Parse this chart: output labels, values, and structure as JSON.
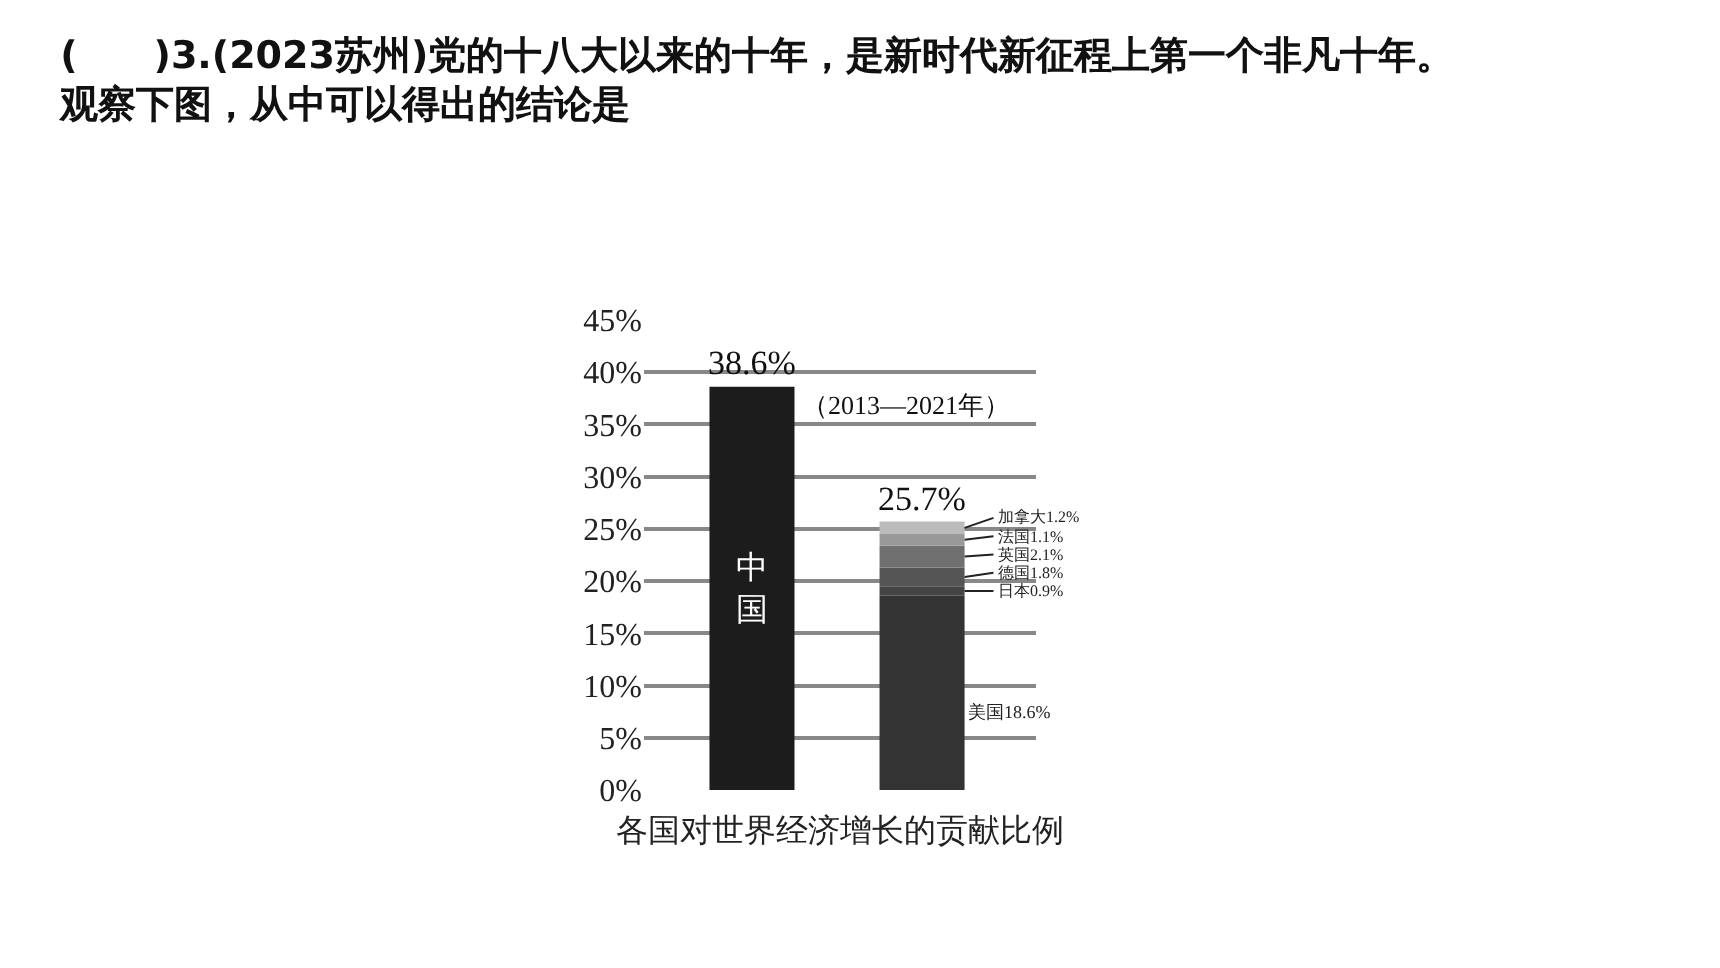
{
  "chart_data": {
    "type": "bar",
    "title": "(　　)3.(2023苏州)党的十八大以来的十年，是新时代新征程上第一个非凡十年。观察下图，从中可以得出的结论是",
    "xlabel": "各国对世界经济增长的贡献比例",
    "categories": [
      null,
      null
    ],
    "stacked": true,
    "series": [
      {
        "name": "中国",
        "color": "#1c1c1c",
        "values": [
          38.6,
          null
        ]
      },
      {
        "name": "美国",
        "color": "#333333",
        "values": [
          null,
          18.6
        ],
        "value_labels": [
          null,
          "18.6%"
        ]
      },
      {
        "name": "日本",
        "color": "#444444",
        "values": [
          null,
          0.9
        ],
        "value_labels": [
          null,
          "0.9%"
        ]
      },
      {
        "name": "德国",
        "color": "#555555",
        "values": [
          null,
          1.8
        ],
        "value_labels": [
          null,
          "1.8%"
        ]
      },
      {
        "name": "英国",
        "color": "#707070",
        "values": [
          null,
          2.1
        ],
        "value_labels": [
          null,
          "2.1%"
        ]
      },
      {
        "name": "法国",
        "color": "#999999",
        "values": [
          null,
          1.1
        ],
        "value_labels": [
          null,
          "1.1%"
        ]
      },
      {
        "name": "加拿大",
        "color": "#bbbbbb",
        "values": [
          null,
          1.2
        ],
        "value_labels": [
          null,
          "1.2%"
        ]
      }
    ],
    "totals": [
      "38.6%",
      "25.7%"
    ],
    "annotations": [
      "（2013—2021年）"
    ],
    "ylim": [
      0,
      45
    ],
    "yticks": [
      {
        "value": 0,
        "label": "0%"
      },
      {
        "value": 5,
        "label": "5%"
      },
      {
        "value": 10,
        "label": "10%"
      },
      {
        "value": 15,
        "label": "15%"
      },
      {
        "value": 20,
        "label": "20%"
      },
      {
        "value": 25,
        "label": "25%"
      },
      {
        "value": 30,
        "label": "30%"
      },
      {
        "value": 35,
        "label": "35%"
      },
      {
        "value": 40,
        "label": "40%"
      },
      {
        "value": 45,
        "label": "45%"
      }
    ],
    "grid": "y",
    "legend": false
  }
}
